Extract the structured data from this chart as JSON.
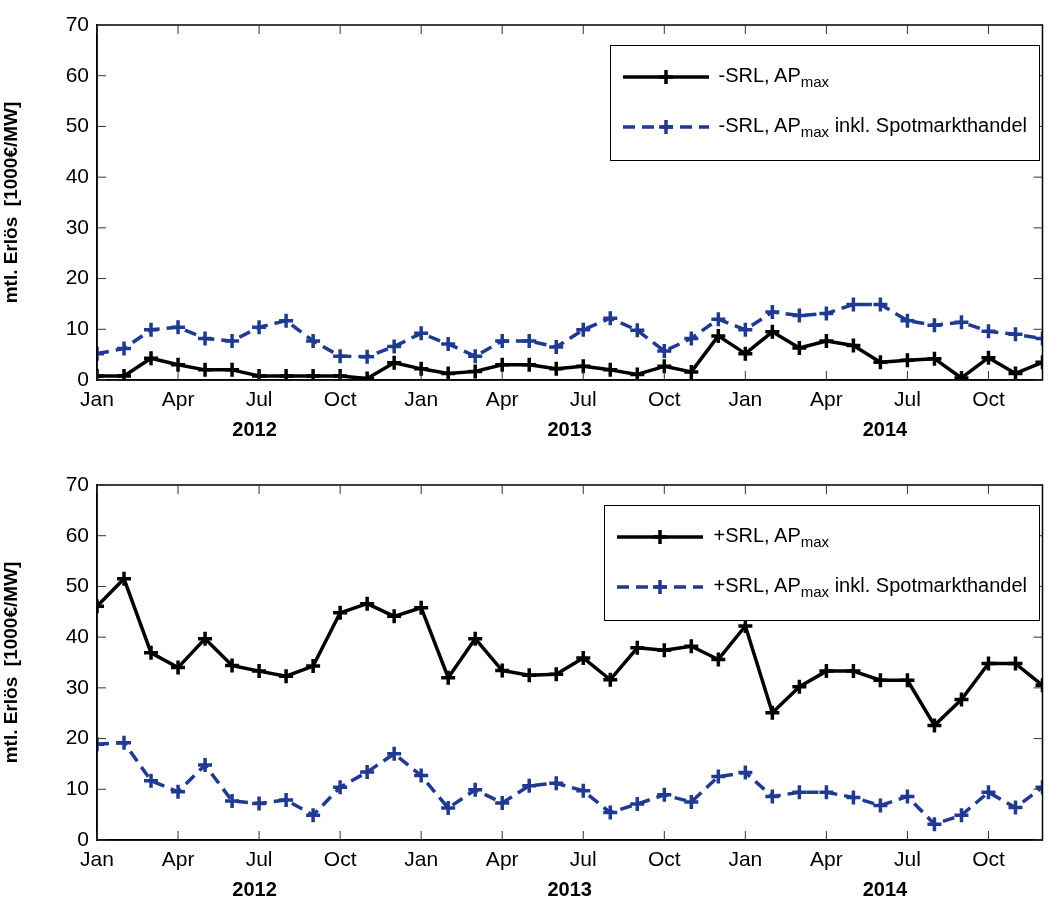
{
  "chart_data": [
    {
      "type": "line",
      "ylabel": "mtl. Erlös  [1000€/MW]",
      "x": [
        "2012-01",
        "2012-02",
        "2012-03",
        "2012-04",
        "2012-05",
        "2012-06",
        "2012-07",
        "2012-08",
        "2012-09",
        "2012-10",
        "2012-11",
        "2012-12",
        "2013-01",
        "2013-02",
        "2013-03",
        "2013-04",
        "2013-05",
        "2013-06",
        "2013-07",
        "2013-08",
        "2013-09",
        "2013-10",
        "2013-11",
        "2013-12",
        "2014-01",
        "2014-02",
        "2014-03",
        "2014-04",
        "2014-05",
        "2014-06",
        "2014-07",
        "2014-08",
        "2014-09",
        "2014-10",
        "2014-11",
        "2014-12"
      ],
      "series": [
        {
          "name": "-SRL, AP$_{max}$",
          "color": "#000000",
          "line_style": "solid",
          "values": [
            0.8,
            0.8,
            4.3,
            3.0,
            2.0,
            2.0,
            0.8,
            0.8,
            0.8,
            0.8,
            0.3,
            3.4,
            2.2,
            1.3,
            1.7,
            3.0,
            3.0,
            2.2,
            2.7,
            2.0,
            1.1,
            2.7,
            1.6,
            8.7,
            5.2,
            9.5,
            6.3,
            7.7,
            6.8,
            3.5,
            3.9,
            4.2,
            0.4,
            4.4,
            1.3,
            3.5
          ]
        },
        {
          "name": "-SRL, AP$_{max}$ inkl. Spotmarkthandel",
          "color": "#1f3a93",
          "line_style": "dashed",
          "values": [
            5.2,
            6.2,
            9.9,
            10.4,
            8.2,
            7.7,
            10.4,
            11.7,
            7.7,
            4.7,
            4.6,
            6.6,
            9.2,
            7.1,
            4.7,
            7.7,
            7.7,
            6.5,
            9.9,
            12.2,
            9.8,
            5.7,
            8.2,
            12.0,
            9.9,
            13.4,
            12.7,
            13.1,
            14.9,
            14.9,
            11.7,
            10.8,
            11.4,
            9.6,
            9.0,
            8.2
          ]
        }
      ],
      "xlim": [
        "2012-01",
        "2014-12"
      ],
      "xticks": [
        {
          "value": "2012-01",
          "label": "Jan"
        },
        {
          "value": "2012-04",
          "label": "Apr"
        },
        {
          "value": "2012-07",
          "label": "Jul"
        },
        {
          "value": "2012-10",
          "label": "Oct"
        },
        {
          "value": "2013-01",
          "label": "Jan"
        },
        {
          "value": "2013-04",
          "label": "Apr"
        },
        {
          "value": "2013-07",
          "label": "Jul"
        },
        {
          "value": "2013-10",
          "label": "Oct"
        },
        {
          "value": "2014-01",
          "label": "Jan"
        },
        {
          "value": "2014-04",
          "label": "Apr"
        },
        {
          "value": "2014-07",
          "label": "Jul"
        },
        {
          "value": "2014-10",
          "label": "Oct"
        }
      ],
      "annotations": [
        "2012",
        "2013",
        "2014"
      ],
      "ylim": [
        0,
        70
      ],
      "yticks": [
        0,
        10,
        20,
        30,
        40,
        50,
        60,
        70
      ],
      "grid": false,
      "legend": "top right",
      "marker": "cross"
    },
    {
      "type": "line",
      "ylabel": "mtl. Erlös  [1000€/MW]",
      "x": [
        "2012-01",
        "2012-02",
        "2012-03",
        "2012-04",
        "2012-05",
        "2012-06",
        "2012-07",
        "2012-08",
        "2012-09",
        "2012-10",
        "2012-11",
        "2012-12",
        "2013-01",
        "2013-02",
        "2013-03",
        "2013-04",
        "2013-05",
        "2013-06",
        "2013-07",
        "2013-08",
        "2013-09",
        "2013-10",
        "2013-11",
        "2013-12",
        "2014-01",
        "2014-02",
        "2014-03",
        "2014-04",
        "2014-05",
        "2014-06",
        "2014-07",
        "2014-08",
        "2014-09",
        "2014-10",
        "2014-11",
        "2014-12"
      ],
      "series": [
        {
          "name": "+SRL, AP$_{max}$",
          "color": "#000000",
          "line_style": "solid",
          "values": [
            46.1,
            51.5,
            36.9,
            34.0,
            39.7,
            34.4,
            33.3,
            32.3,
            34.3,
            44.8,
            46.6,
            44.1,
            45.8,
            32.0,
            39.7,
            33.4,
            32.5,
            32.7,
            35.9,
            31.6,
            37.9,
            37.4,
            38.2,
            35.6,
            42.2,
            25.1,
            30.2,
            33.3,
            33.3,
            31.5,
            31.5,
            22.6,
            27.7,
            34.8,
            34.8,
            30.5
          ]
        },
        {
          "name": "+SRL, AP$_{max}$ inkl. Spotmarkthandel",
          "color": "#1f3a93",
          "line_style": "dashed",
          "values": [
            18.9,
            19.2,
            11.7,
            9.5,
            14.8,
            7.7,
            7.2,
            7.9,
            4.9,
            10.4,
            13.4,
            17.0,
            12.7,
            6.3,
            9.9,
            7.3,
            10.7,
            11.2,
            9.7,
            5.4,
            7.1,
            8.9,
            7.5,
            12.5,
            13.3,
            8.6,
            9.4,
            9.4,
            8.4,
            6.8,
            8.6,
            3.1,
            4.9,
            9.4,
            6.4,
            10.4
          ]
        }
      ],
      "xlim": [
        "2012-01",
        "2014-12"
      ],
      "xticks": [
        {
          "value": "2012-01",
          "label": "Jan"
        },
        {
          "value": "2012-04",
          "label": "Apr"
        },
        {
          "value": "2012-07",
          "label": "Jul"
        },
        {
          "value": "2012-10",
          "label": "Oct"
        },
        {
          "value": "2013-01",
          "label": "Jan"
        },
        {
          "value": "2013-04",
          "label": "Apr"
        },
        {
          "value": "2013-07",
          "label": "Jul"
        },
        {
          "value": "2013-10",
          "label": "Oct"
        },
        {
          "value": "2014-01",
          "label": "Jan"
        },
        {
          "value": "2014-04",
          "label": "Apr"
        },
        {
          "value": "2014-07",
          "label": "Jul"
        },
        {
          "value": "2014-10",
          "label": "Oct"
        }
      ],
      "annotations": [
        "2012",
        "2013",
        "2014"
      ],
      "ylim": [
        0,
        70
      ],
      "yticks": [
        0,
        10,
        20,
        30,
        40,
        50,
        60,
        70
      ],
      "grid": false,
      "legend": "top right",
      "marker": "cross"
    }
  ]
}
